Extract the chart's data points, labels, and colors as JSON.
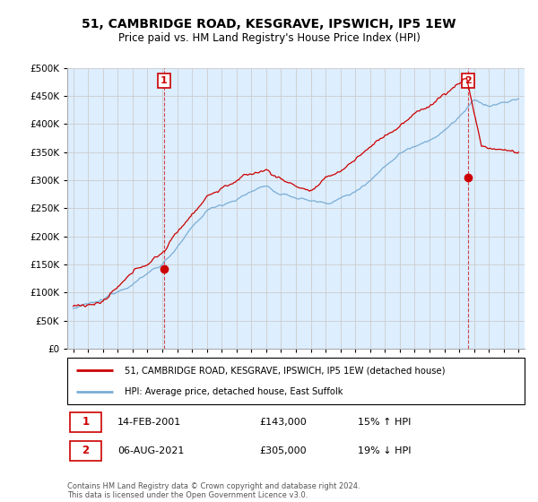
{
  "title": "51, CAMBRIDGE ROAD, KESGRAVE, IPSWICH, IP5 1EW",
  "subtitle": "Price paid vs. HM Land Registry's House Price Index (HPI)",
  "legend_line1": "51, CAMBRIDGE ROAD, KESGRAVE, IPSWICH, IP5 1EW (detached house)",
  "legend_line2": "HPI: Average price, detached house, East Suffolk",
  "annotation1_label": "1",
  "annotation1_date": "14-FEB-2001",
  "annotation1_price": "£143,000",
  "annotation1_hpi": "15% ↑ HPI",
  "annotation2_label": "2",
  "annotation2_date": "06-AUG-2021",
  "annotation2_price": "£305,000",
  "annotation2_hpi": "19% ↓ HPI",
  "footer": "Contains HM Land Registry data © Crown copyright and database right 2024.\nThis data is licensed under the Open Government Licence v3.0.",
  "price_color": "#cc0000",
  "hpi_color": "#7aadd4",
  "plot_bg_color": "#ddeeff",
  "marker1_x": 2001.12,
  "marker1_y": 143000,
  "marker2_x": 2021.6,
  "marker2_y": 305000,
  "ylim": [
    0,
    500000
  ],
  "yticks": [
    0,
    50000,
    100000,
    150000,
    200000,
    250000,
    300000,
    350000,
    400000,
    450000,
    500000
  ],
  "xlim": [
    1994.6,
    2025.4
  ],
  "xtick_years": [
    1995,
    1996,
    1997,
    1998,
    1999,
    2000,
    2001,
    2002,
    2003,
    2004,
    2005,
    2006,
    2007,
    2008,
    2009,
    2010,
    2011,
    2012,
    2013,
    2014,
    2015,
    2016,
    2017,
    2018,
    2019,
    2020,
    2021,
    2022,
    2023,
    2024,
    2025
  ],
  "bg_color": "#ffffff",
  "grid_color": "#cccccc"
}
